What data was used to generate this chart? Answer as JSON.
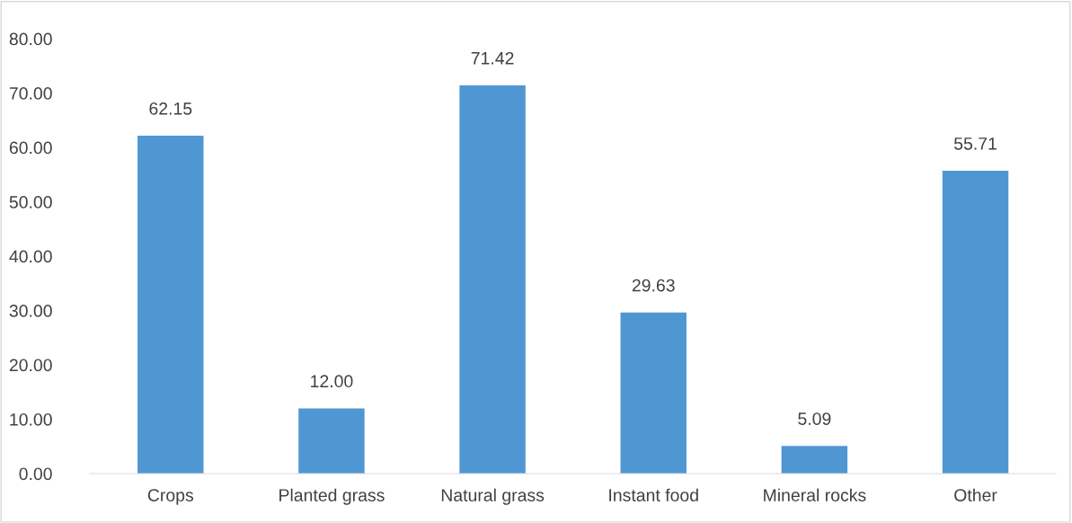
{
  "chart_data": {
    "type": "bar",
    "categories": [
      "Crops",
      "Planted grass",
      "Natural grass",
      "Instant food",
      "Mineral rocks",
      "Other"
    ],
    "values": [
      62.15,
      12.0,
      71.42,
      29.63,
      5.09,
      55.71
    ],
    "value_labels": [
      "62.15",
      "12.00",
      "71.42",
      "29.63",
      "5.09",
      "55.71"
    ],
    "color": "#4f97d3",
    "ylim": [
      0,
      80
    ],
    "yticks": [
      {
        "value": 0,
        "label": "0.00"
      },
      {
        "value": 10,
        "label": "10.00"
      },
      {
        "value": 20,
        "label": "20.00"
      },
      {
        "value": 30,
        "label": "30.00"
      },
      {
        "value": 40,
        "label": "40.00"
      },
      {
        "value": 50,
        "label": "50.00"
      },
      {
        "value": 60,
        "label": "60.00"
      },
      {
        "value": 70,
        "label": "70.00"
      },
      {
        "value": 80,
        "label": "80.00"
      }
    ],
    "grid": false,
    "legend": false
  }
}
